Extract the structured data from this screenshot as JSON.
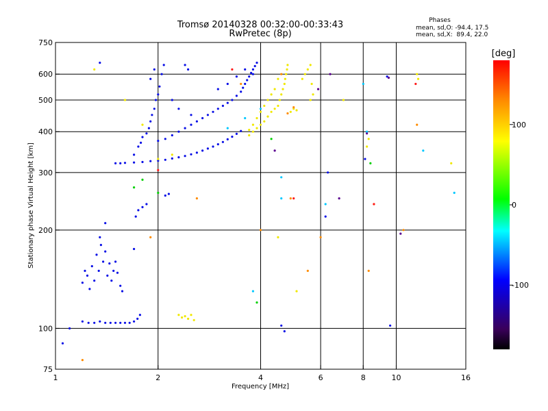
{
  "header": {
    "title": "Tromsø 20140328 00:32:00-00:33:43",
    "subtitle": "RwPretec (8p)",
    "stats_heading": "Phases",
    "stats_o": "mean, sd,O: -94.4, 17.5",
    "stats_x": "mean, sd,X:  89.4, 22.0"
  },
  "chart_data": {
    "type": "scatter",
    "xlabel": "Frequency [MHz]",
    "ylabel": "Stationary phase Virtual Height [km]",
    "x_scale": "log",
    "y_scale": "log",
    "xlim": [
      1,
      16
    ],
    "ylim": [
      75,
      750
    ],
    "x_ticks": [
      1,
      2,
      4,
      6,
      8,
      10,
      16
    ],
    "x_ticklabels": [
      "1",
      "2",
      "4",
      "6",
      "8",
      "10",
      "16"
    ],
    "y_ticks": [
      75,
      100,
      200,
      300,
      400,
      500,
      600,
      750
    ],
    "y_ticklabels": [
      "75",
      "100",
      "200",
      "300",
      "400",
      "500",
      "600",
      "750"
    ],
    "grid_x": [
      2,
      4,
      6,
      8,
      10
    ],
    "grid_y": [
      100,
      200,
      300,
      400,
      500,
      600
    ],
    "colorbar": {
      "unit": "[deg]",
      "range": [
        -180,
        180
      ],
      "ticks": [
        100,
        0,
        -100
      ],
      "ticklabels": [
        "100",
        "0",
        "-100"
      ],
      "colors": [
        "#000000",
        "#3a005a",
        "#0000ff",
        "#00ffff",
        "#00ff00",
        "#ffff00",
        "#ff8c00",
        "#ff0000"
      ]
    },
    "series": [
      {
        "color": "#0a10e6",
        "points": [
          [
            1.2,
            105
          ],
          [
            1.25,
            104
          ],
          [
            1.3,
            104
          ],
          [
            1.35,
            105
          ],
          [
            1.4,
            104
          ],
          [
            1.45,
            104
          ],
          [
            1.5,
            104
          ],
          [
            1.55,
            104
          ],
          [
            1.6,
            104
          ],
          [
            1.65,
            104
          ],
          [
            1.7,
            105
          ],
          [
            1.74,
            107
          ],
          [
            1.77,
            110
          ],
          [
            1.2,
            138
          ],
          [
            1.22,
            150
          ],
          [
            1.24,
            145
          ],
          [
            1.26,
            132
          ],
          [
            1.28,
            155
          ],
          [
            1.3,
            140
          ],
          [
            1.32,
            168
          ],
          [
            1.34,
            150
          ],
          [
            1.36,
            180
          ],
          [
            1.38,
            160
          ],
          [
            1.4,
            172
          ],
          [
            1.42,
            145
          ],
          [
            1.44,
            158
          ],
          [
            1.46,
            140
          ],
          [
            1.48,
            150
          ],
          [
            1.5,
            160
          ],
          [
            1.52,
            148
          ],
          [
            1.55,
            135
          ],
          [
            1.57,
            130
          ],
          [
            1.35,
            190
          ],
          [
            1.4,
            210
          ],
          [
            1.5,
            320
          ],
          [
            1.55,
            320
          ],
          [
            1.6,
            321
          ],
          [
            1.7,
            322
          ],
          [
            1.8,
            323
          ],
          [
            1.9,
            325
          ],
          [
            2.0,
            326
          ],
          [
            2.1,
            328
          ],
          [
            2.2,
            331
          ],
          [
            2.3,
            334
          ],
          [
            2.4,
            337
          ],
          [
            2.5,
            341
          ],
          [
            2.6,
            345
          ],
          [
            2.7,
            350
          ],
          [
            2.8,
            355
          ],
          [
            2.9,
            360
          ],
          [
            3.0,
            366
          ],
          [
            3.1,
            372
          ],
          [
            3.2,
            379
          ],
          [
            3.3,
            386
          ],
          [
            3.4,
            394
          ],
          [
            3.5,
            402
          ],
          [
            1.7,
            340
          ],
          [
            1.75,
            360
          ],
          [
            1.78,
            370
          ],
          [
            1.8,
            385
          ],
          [
            1.85,
            395
          ],
          [
            1.88,
            410
          ],
          [
            1.9,
            430
          ],
          [
            1.92,
            450
          ],
          [
            1.95,
            470
          ],
          [
            1.97,
            500
          ],
          [
            2.0,
            520
          ],
          [
            2.02,
            550
          ],
          [
            2.05,
            600
          ],
          [
            2.08,
            640
          ],
          [
            1.9,
            580
          ],
          [
            1.95,
            620
          ],
          [
            2.0,
            375
          ],
          [
            2.1,
            380
          ],
          [
            2.2,
            390
          ],
          [
            2.3,
            400
          ],
          [
            2.4,
            410
          ],
          [
            2.5,
            420
          ],
          [
            2.6,
            430
          ],
          [
            2.7,
            440
          ],
          [
            2.8,
            450
          ],
          [
            2.9,
            460
          ],
          [
            3.0,
            470
          ],
          [
            3.1,
            480
          ],
          [
            3.2,
            490
          ],
          [
            3.3,
            500
          ],
          [
            3.4,
            515
          ],
          [
            3.5,
            530
          ],
          [
            3.55,
            545
          ],
          [
            3.6,
            560
          ],
          [
            3.65,
            575
          ],
          [
            3.7,
            590
          ],
          [
            3.75,
            605
          ],
          [
            3.8,
            620
          ],
          [
            3.85,
            635
          ],
          [
            3.9,
            650
          ],
          [
            2.4,
            640
          ],
          [
            2.45,
            620
          ],
          [
            1.72,
            220
          ],
          [
            1.75,
            230
          ],
          [
            1.8,
            235
          ],
          [
            1.85,
            240
          ],
          [
            2.1,
            255
          ],
          [
            2.15,
            258
          ],
          [
            1.05,
            90
          ],
          [
            1.1,
            100
          ],
          [
            1.35,
            650
          ],
          [
            1.7,
            175
          ],
          [
            3.0,
            540
          ],
          [
            3.2,
            560
          ],
          [
            3.4,
            590
          ],
          [
            3.6,
            620
          ],
          [
            3.8,
            600
          ],
          [
            2.2,
            500
          ],
          [
            2.3,
            470
          ],
          [
            2.5,
            450
          ],
          [
            6.2,
            220
          ],
          [
            6.3,
            300
          ],
          [
            8.1,
            330
          ],
          [
            9.4,
            590
          ],
          [
            9.6,
            102
          ],
          [
            4.7,
            98
          ],
          [
            4.6,
            102
          ]
        ]
      },
      {
        "color": "#f0e800",
        "points": [
          [
            3.7,
            390
          ],
          [
            3.8,
            400
          ],
          [
            3.9,
            410
          ],
          [
            4.0,
            420
          ],
          [
            4.1,
            430
          ],
          [
            4.2,
            445
          ],
          [
            4.3,
            460
          ],
          [
            4.4,
            470
          ],
          [
            4.5,
            480
          ],
          [
            4.55,
            500
          ],
          [
            4.6,
            520
          ],
          [
            4.65,
            540
          ],
          [
            4.7,
            560
          ],
          [
            4.72,
            580
          ],
          [
            4.75,
            600
          ],
          [
            4.78,
            620
          ],
          [
            4.8,
            640
          ],
          [
            4.4,
            540
          ],
          [
            4.5,
            580
          ],
          [
            4.3,
            520
          ],
          [
            4.2,
            500
          ],
          [
            4.1,
            480
          ],
          [
            4.0,
            460
          ],
          [
            3.9,
            440
          ],
          [
            3.8,
            420
          ],
          [
            3.7,
            405
          ],
          [
            4.9,
            460
          ],
          [
            5.0,
            470
          ],
          [
            5.1,
            465
          ],
          [
            5.3,
            580
          ],
          [
            5.4,
            600
          ],
          [
            5.5,
            620
          ],
          [
            5.6,
            640
          ],
          [
            5.65,
            560
          ],
          [
            5.7,
            520
          ],
          [
            5.6,
            500
          ],
          [
            2.3,
            110
          ],
          [
            2.35,
            108
          ],
          [
            2.4,
            109
          ],
          [
            2.45,
            107
          ],
          [
            2.5,
            110
          ],
          [
            2.55,
            106
          ],
          [
            1.3,
            620
          ],
          [
            1.6,
            500
          ],
          [
            1.8,
            420
          ],
          [
            2.0,
            330
          ],
          [
            2.2,
            340
          ],
          [
            7.0,
            500
          ],
          [
            8.2,
            360
          ],
          [
            8.3,
            380
          ],
          [
            11.5,
            600
          ],
          [
            11.6,
            580
          ],
          [
            14.5,
            320
          ],
          [
            4.5,
            190
          ],
          [
            5.1,
            130
          ]
        ]
      },
      {
        "color": "#ff8c00",
        "points": [
          [
            4.8,
            455
          ],
          [
            5.0,
            475
          ],
          [
            4.6,
            600
          ],
          [
            3.5,
            560
          ],
          [
            5.5,
            150
          ],
          [
            8.3,
            150
          ],
          [
            8.6,
            240
          ],
          [
            11.5,
            420
          ],
          [
            6.0,
            190
          ],
          [
            1.2,
            80
          ],
          [
            1.9,
            190
          ],
          [
            2.6,
            250
          ],
          [
            4.9,
            250
          ],
          [
            4.0,
            200
          ],
          [
            10.5,
            200
          ]
        ]
      },
      {
        "color": "#00c8ff",
        "points": [
          [
            4.6,
            250
          ],
          [
            4.6,
            290
          ],
          [
            6.2,
            240
          ],
          [
            3.8,
            130
          ],
          [
            12.0,
            350
          ],
          [
            14.8,
            260
          ],
          [
            8.2,
            400
          ],
          [
            8.0,
            560
          ],
          [
            4.0,
            470
          ],
          [
            3.6,
            440
          ],
          [
            3.2,
            410
          ]
        ]
      },
      {
        "color": "#00d000",
        "points": [
          [
            1.7,
            270
          ],
          [
            1.8,
            285
          ],
          [
            2.0,
            260
          ],
          [
            3.9,
            120
          ],
          [
            4.3,
            380
          ],
          [
            8.4,
            320
          ]
        ]
      },
      {
        "color": "#ff1a1a",
        "points": [
          [
            2.0,
            305
          ],
          [
            3.3,
            620
          ],
          [
            5.0,
            250
          ],
          [
            8.6,
            240
          ],
          [
            11.4,
            560
          ]
        ]
      },
      {
        "color": "#5a0090",
        "points": [
          [
            4.4,
            350
          ],
          [
            6.8,
            250
          ],
          [
            9.5,
            585
          ],
          [
            10.3,
            195
          ],
          [
            8.2,
            395
          ],
          [
            6.4,
            600
          ],
          [
            5.9,
            540
          ]
        ]
      }
    ]
  }
}
